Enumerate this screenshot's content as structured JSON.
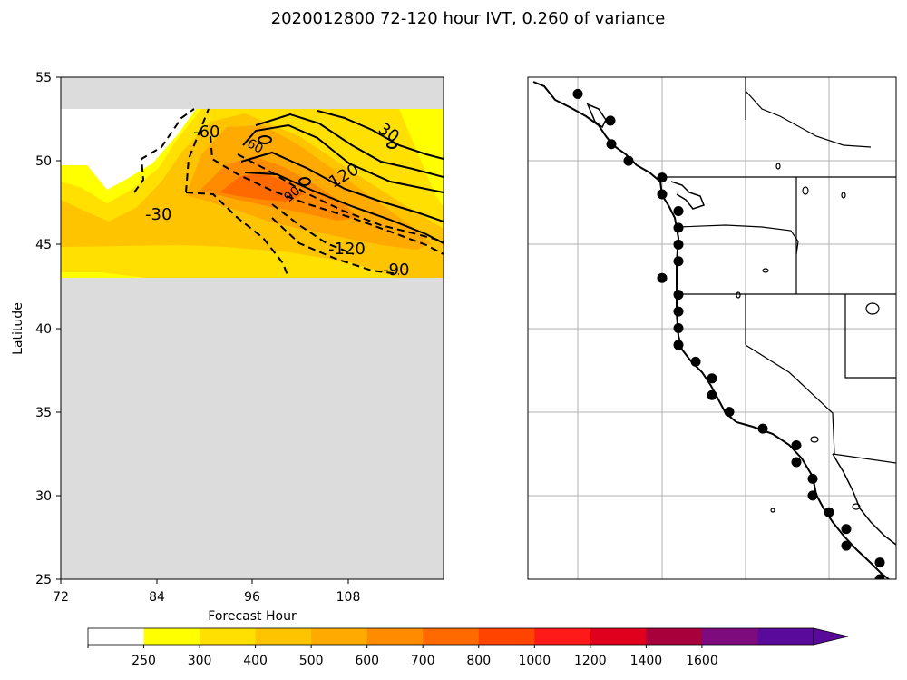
{
  "title": "2020012800 72-120 hour IVT, 0.260 of variance",
  "chart_data": [
    {
      "type": "contour",
      "panel": "left",
      "xlabel": "Forecast Hour",
      "ylabel": "Latitude",
      "xlim": [
        72,
        120
      ],
      "ylim": [
        25,
        55
      ],
      "xticks": [
        "72",
        "84",
        "96",
        "108"
      ],
      "yticks": [
        "25",
        "30",
        "35",
        "40",
        "45",
        "50",
        "55"
      ],
      "data_band_lat": [
        43,
        53
      ],
      "contour_labels": [
        "-60",
        "-30",
        "-120",
        "-90",
        "30",
        "120",
        "60",
        "90"
      ],
      "contour_line_style": {
        "negative": "dashed",
        "positive": "solid"
      }
    },
    {
      "type": "map",
      "panel": "right",
      "region": "US West Coast",
      "points_lat": [
        54.0,
        52.4,
        51.0,
        50.0,
        49.0,
        48.0,
        47.0,
        46.0,
        45.0,
        44.0,
        43.0,
        42.0,
        41.0,
        40.0,
        39.0,
        38.0,
        37.0,
        36.0,
        35.0,
        34.0,
        33.0,
        32.0,
        31.0,
        30.0,
        29.0,
        28.0,
        27.0,
        26.0,
        25.0
      ]
    }
  ],
  "colorbar": {
    "ticks": [
      "250",
      "300",
      "400",
      "500",
      "600",
      "700",
      "800",
      "1000",
      "1200",
      "1400",
      "1600"
    ],
    "colors": [
      "#ffffff",
      "#ffff00",
      "#ffe000",
      "#ffc400",
      "#ffaa00",
      "#ff8c00",
      "#ff6a00",
      "#ff4400",
      "#ff1a1a",
      "#e0001e",
      "#a8003a",
      "#7e0b7e",
      "#5a0a9a"
    ]
  }
}
